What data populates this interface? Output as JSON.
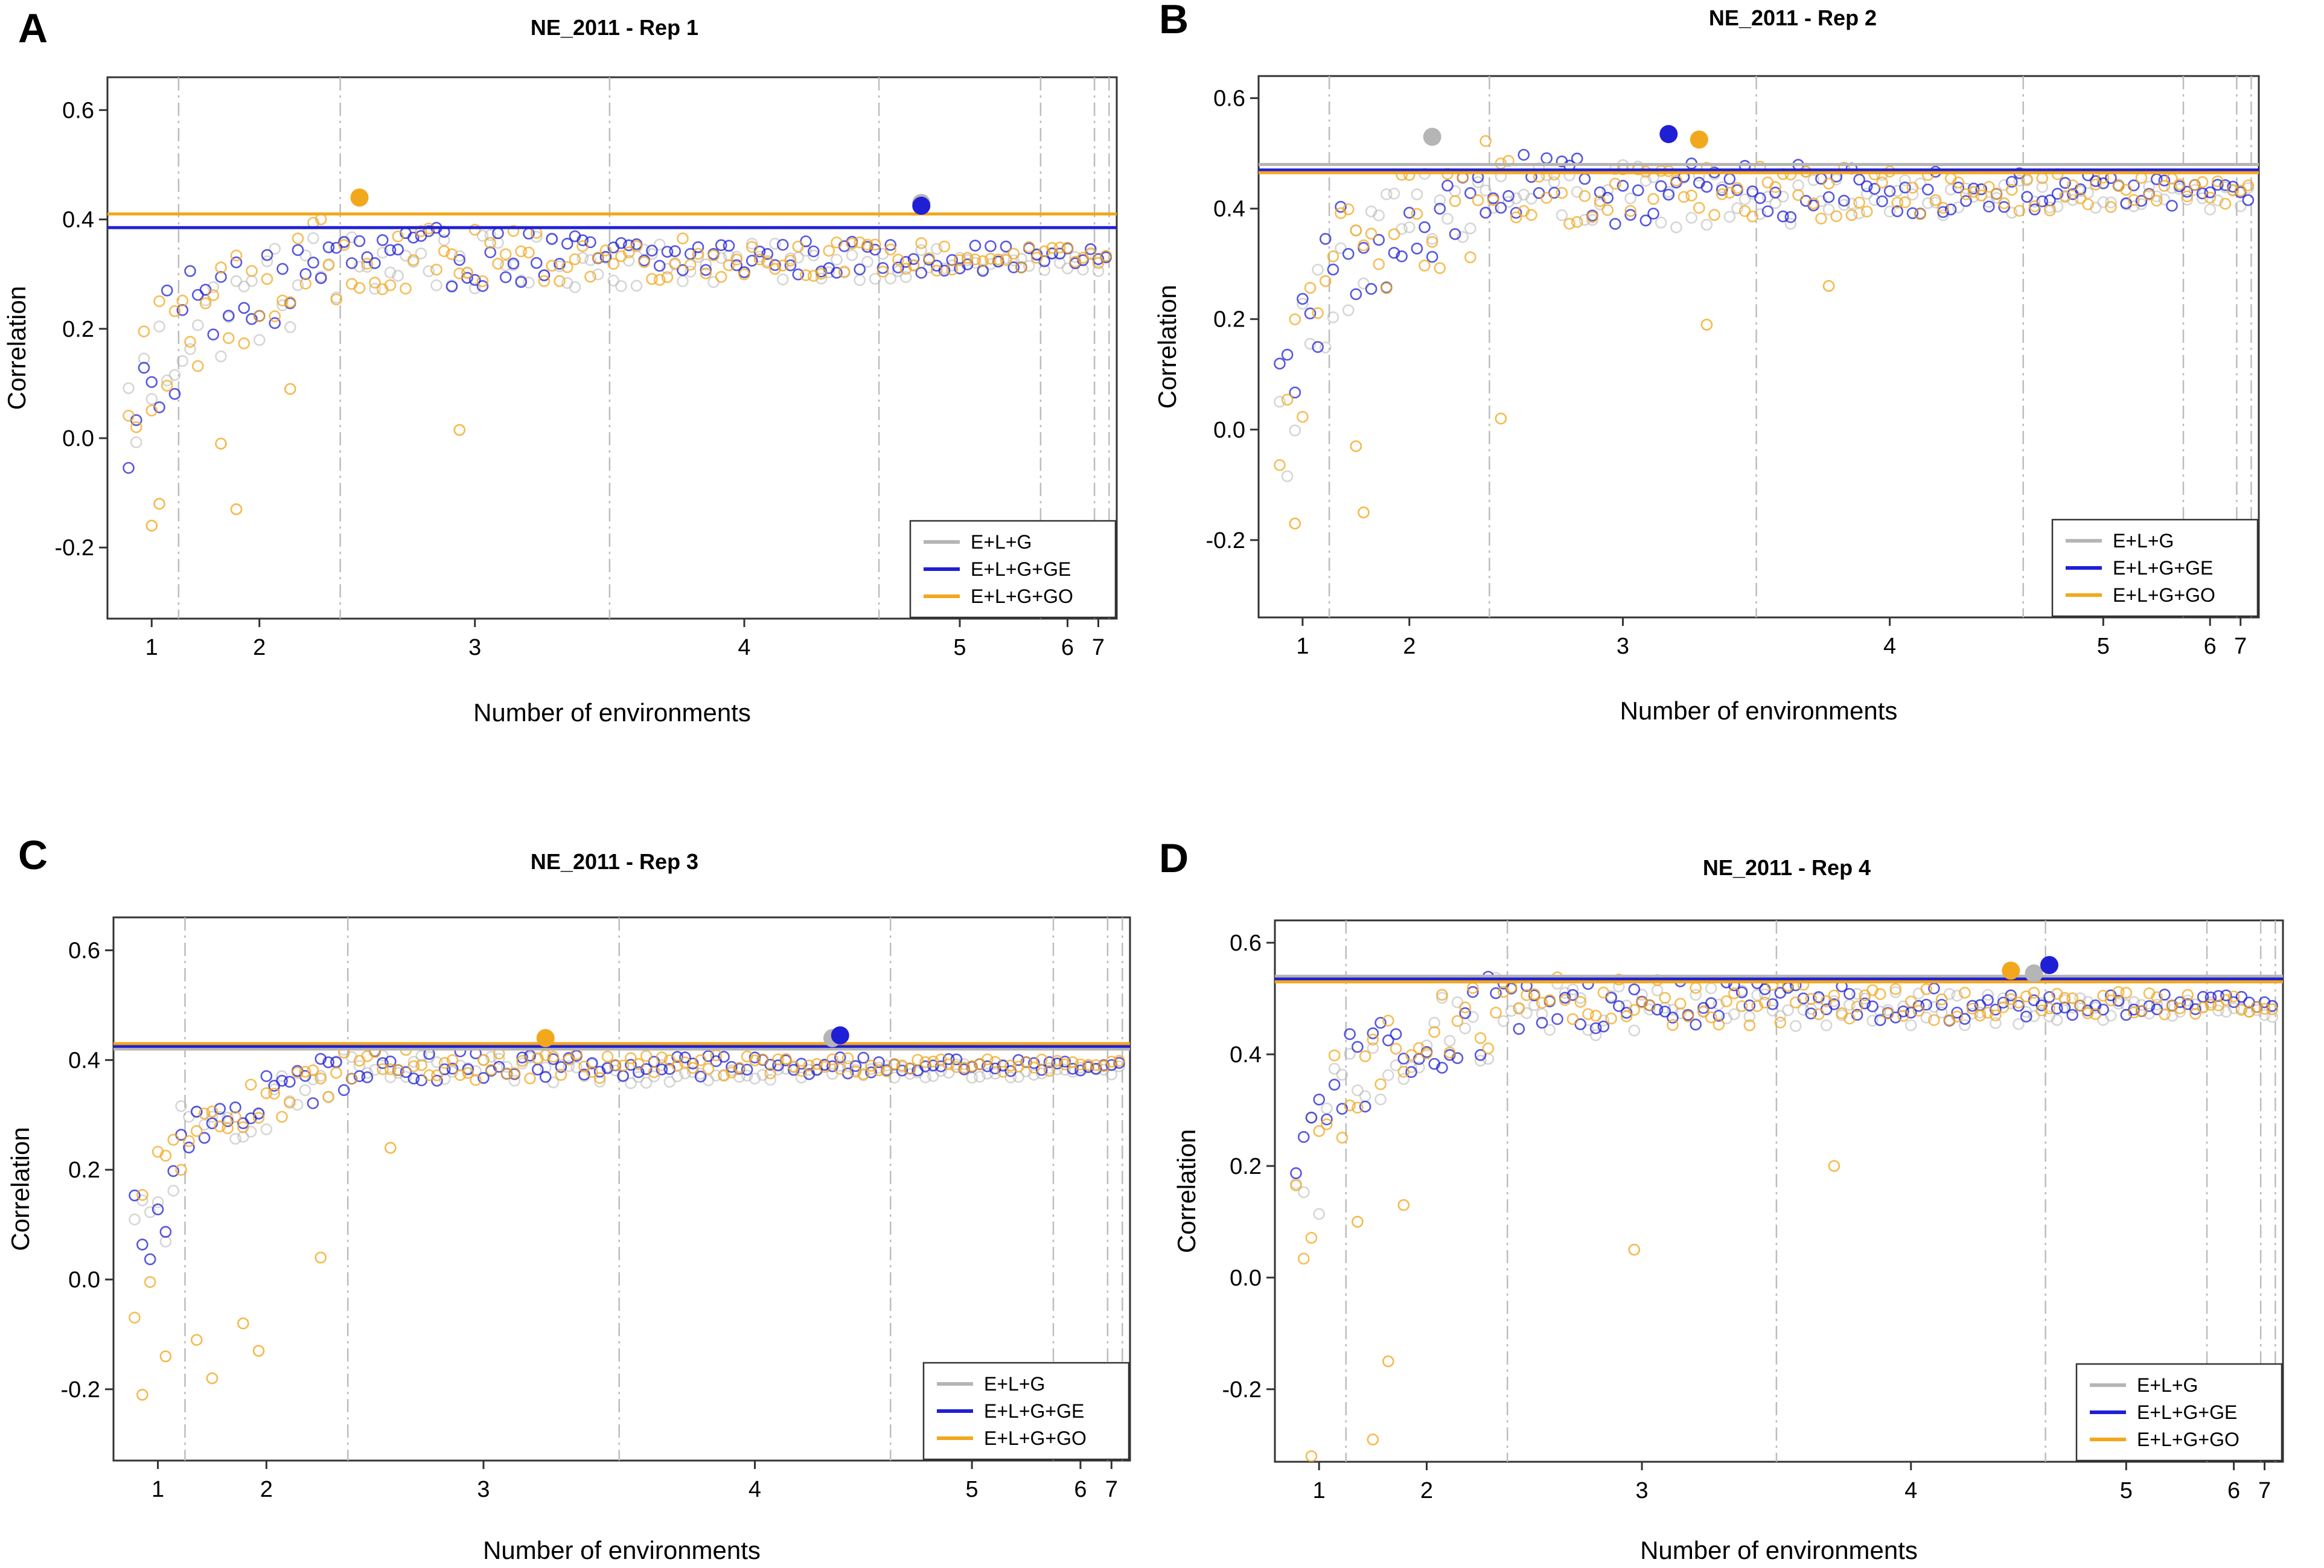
{
  "figure": {
    "colors": {
      "E+L+G": "#b5b5b5",
      "E+L+G+GE": "#1f1fd6",
      "E+L+G+GO": "#f2a81d"
    }
  },
  "chart_data": [
    {
      "panel": "A",
      "type": "scatter",
      "title": "NE_2011 - Rep 1",
      "xlabel": "Number of environments",
      "ylabel": "Correlation",
      "ylim": [
        -0.33,
        0.66
      ],
      "yticks": [
        -0.2,
        0.0,
        0.2,
        0.4,
        0.6
      ],
      "ytick_labels": [
        "-0.2",
        "0.0",
        "0.2",
        "0.4",
        "0.6"
      ],
      "xlim": [
        0,
        128
      ],
      "groups": [
        {
          "label": "1",
          "start": 0,
          "end": 7
        },
        {
          "label": "2",
          "start": 7,
          "end": 28
        },
        {
          "label": "3",
          "start": 28,
          "end": 63
        },
        {
          "label": "4",
          "start": 63,
          "end": 98
        },
        {
          "label": "5",
          "start": 98,
          "end": 119
        },
        {
          "label": "6",
          "start": 119,
          "end": 126
        },
        {
          "label": "7",
          "start": 126,
          "end": 127
        }
      ],
      "legend": {
        "position": "bottom-right",
        "entries": [
          {
            "label": "E+L+G",
            "color": "#b5b5b5"
          },
          {
            "label": "E+L+G+GE",
            "color": "#1f1fd6"
          },
          {
            "label": "E+L+G+GO",
            "color": "#f2a81d"
          }
        ]
      },
      "series": [
        {
          "name": "E+L+G",
          "color": "#b5b5b5",
          "hline": 0.41,
          "best": {
            "x": 103,
            "y": 0.43
          }
        },
        {
          "name": "E+L+G+GE",
          "color": "#1f1fd6",
          "hline": 0.385,
          "best": {
            "x": 103,
            "y": 0.425
          }
        },
        {
          "name": "E+L+G+GO",
          "color": "#f2a81d",
          "hline": 0.41,
          "best": {
            "x": 30,
            "y": 0.44
          }
        }
      ],
      "scatter_summary": {
        "start_level": 0.05,
        "plateau": 0.33,
        "spread": 0.06,
        "go_outliers": [
          [
            3,
            -0.16
          ],
          [
            4,
            -0.12
          ],
          [
            12,
            -0.01
          ],
          [
            14,
            -0.13
          ],
          [
            21,
            0.09
          ],
          [
            43,
            0.015
          ]
        ]
      }
    },
    {
      "panel": "B",
      "type": "scatter",
      "title": "NE_2011 - Rep 2",
      "xlabel": "Number of environments",
      "ylabel": "Correlation",
      "ylim": [
        -0.34,
        0.64
      ],
      "yticks": [
        -0.2,
        0.0,
        0.2,
        0.4,
        0.6
      ],
      "ytick_labels": [
        "-0.2",
        "0.0",
        "0.2",
        "0.4",
        "0.6"
      ],
      "xlim": [
        0,
        128
      ],
      "groups": [
        {
          "label": "1",
          "start": 0,
          "end": 7
        },
        {
          "label": "2",
          "start": 7,
          "end": 28
        },
        {
          "label": "3",
          "start": 28,
          "end": 63
        },
        {
          "label": "4",
          "start": 63,
          "end": 98
        },
        {
          "label": "5",
          "start": 98,
          "end": 119
        },
        {
          "label": "6",
          "start": 119,
          "end": 126
        },
        {
          "label": "7",
          "start": 126,
          "end": 127
        }
      ],
      "legend": {
        "position": "bottom-right",
        "entries": [
          {
            "label": "E+L+G",
            "color": "#b5b5b5"
          },
          {
            "label": "E+L+G+GE",
            "color": "#1f1fd6"
          },
          {
            "label": "E+L+G+GO",
            "color": "#f2a81d"
          }
        ]
      },
      "series": [
        {
          "name": "E+L+G",
          "color": "#b5b5b5",
          "hline": 0.48,
          "best": {
            "x": 20,
            "y": 0.53
          }
        },
        {
          "name": "E+L+G+GE",
          "color": "#1f1fd6",
          "hline": 0.47,
          "best": {
            "x": 51,
            "y": 0.535
          }
        },
        {
          "name": "E+L+G+GO",
          "color": "#f2a81d",
          "hline": 0.465,
          "best": {
            "x": 55,
            "y": 0.525
          }
        }
      ],
      "scatter_summary": {
        "start_level": 0.0,
        "plateau": 0.43,
        "spread": 0.07,
        "go_outliers": [
          [
            2,
            -0.17
          ],
          [
            10,
            -0.03
          ],
          [
            11,
            -0.15
          ],
          [
            29,
            0.02
          ],
          [
            56,
            0.19
          ],
          [
            72,
            0.26
          ]
        ]
      }
    },
    {
      "panel": "C",
      "type": "scatter",
      "title": "NE_2011 - Rep 3",
      "xlabel": "Number of environments",
      "ylabel": "Correlation",
      "ylim": [
        -0.33,
        0.66
      ],
      "yticks": [
        -0.2,
        0.0,
        0.2,
        0.4,
        0.6
      ],
      "ytick_labels": [
        "-0.2",
        "0.0",
        "0.2",
        "0.4",
        "0.6"
      ],
      "xlim": [
        0,
        128
      ],
      "groups": [
        {
          "label": "1",
          "start": 0,
          "end": 7
        },
        {
          "label": "2",
          "start": 7,
          "end": 28
        },
        {
          "label": "3",
          "start": 28,
          "end": 63
        },
        {
          "label": "4",
          "start": 63,
          "end": 98
        },
        {
          "label": "5",
          "start": 98,
          "end": 119
        },
        {
          "label": "6",
          "start": 119,
          "end": 126
        },
        {
          "label": "7",
          "start": 126,
          "end": 127
        }
      ],
      "legend": {
        "position": "bottom-right",
        "entries": [
          {
            "label": "E+L+G",
            "color": "#b5b5b5"
          },
          {
            "label": "E+L+G+GE",
            "color": "#1f1fd6"
          },
          {
            "label": "E+L+G+GO",
            "color": "#f2a81d"
          }
        ]
      },
      "series": [
        {
          "name": "E+L+G",
          "color": "#b5b5b5",
          "hline": 0.42,
          "best": {
            "x": 90,
            "y": 0.44
          }
        },
        {
          "name": "E+L+G+GE",
          "color": "#1f1fd6",
          "hline": 0.425,
          "best": {
            "x": 91,
            "y": 0.445
          }
        },
        {
          "name": "E+L+G+GO",
          "color": "#f2a81d",
          "hline": 0.43,
          "best": {
            "x": 53,
            "y": 0.44
          }
        }
      ],
      "scatter_summary": {
        "start_level": 0.05,
        "plateau": 0.39,
        "spread": 0.03,
        "go_outliers": [
          [
            1,
            -0.21
          ],
          [
            4,
            -0.14
          ],
          [
            8,
            -0.11
          ],
          [
            10,
            -0.18
          ],
          [
            14,
            -0.08
          ],
          [
            16,
            -0.13
          ],
          [
            24,
            0.04
          ],
          [
            33,
            0.24
          ]
        ]
      }
    },
    {
      "panel": "D",
      "type": "scatter",
      "title": "NE_2011 - Rep 4",
      "xlabel": "Number of environments",
      "ylabel": "Correlation",
      "ylim": [
        -0.33,
        0.64
      ],
      "yticks": [
        -0.2,
        0.0,
        0.2,
        0.4,
        0.6
      ],
      "ytick_labels": [
        "-0.2",
        "0.0",
        "0.2",
        "0.4",
        "0.6"
      ],
      "xlim": [
        0,
        128
      ],
      "groups": [
        {
          "label": "1",
          "start": 0,
          "end": 7
        },
        {
          "label": "2",
          "start": 7,
          "end": 28
        },
        {
          "label": "3",
          "start": 28,
          "end": 63
        },
        {
          "label": "4",
          "start": 63,
          "end": 98
        },
        {
          "label": "5",
          "start": 98,
          "end": 119
        },
        {
          "label": "6",
          "start": 119,
          "end": 126
        },
        {
          "label": "7",
          "start": 126,
          "end": 127
        }
      ],
      "legend": {
        "position": "bottom-right",
        "entries": [
          {
            "label": "E+L+G",
            "color": "#b5b5b5"
          },
          {
            "label": "E+L+G+GE",
            "color": "#1f1fd6"
          },
          {
            "label": "E+L+G+GO",
            "color": "#f2a81d"
          }
        ]
      },
      "series": [
        {
          "name": "E+L+G",
          "color": "#b5b5b5",
          "hline": 0.54,
          "best": {
            "x": 96,
            "y": 0.545
          }
        },
        {
          "name": "E+L+G+GE",
          "color": "#1f1fd6",
          "hline": 0.535,
          "best": {
            "x": 98,
            "y": 0.56
          }
        },
        {
          "name": "E+L+G+GO",
          "color": "#f2a81d",
          "hline": 0.53,
          "best": {
            "x": 93,
            "y": 0.55
          }
        }
      ],
      "scatter_summary": {
        "start_level": 0.1,
        "plateau": 0.49,
        "spread": 0.05,
        "go_outliers": [
          [
            2,
            -0.32
          ],
          [
            8,
            0.1
          ],
          [
            10,
            -0.29
          ],
          [
            12,
            -0.15
          ],
          [
            14,
            0.13
          ],
          [
            44,
            0.05
          ],
          [
            70,
            0.2
          ]
        ]
      }
    }
  ]
}
